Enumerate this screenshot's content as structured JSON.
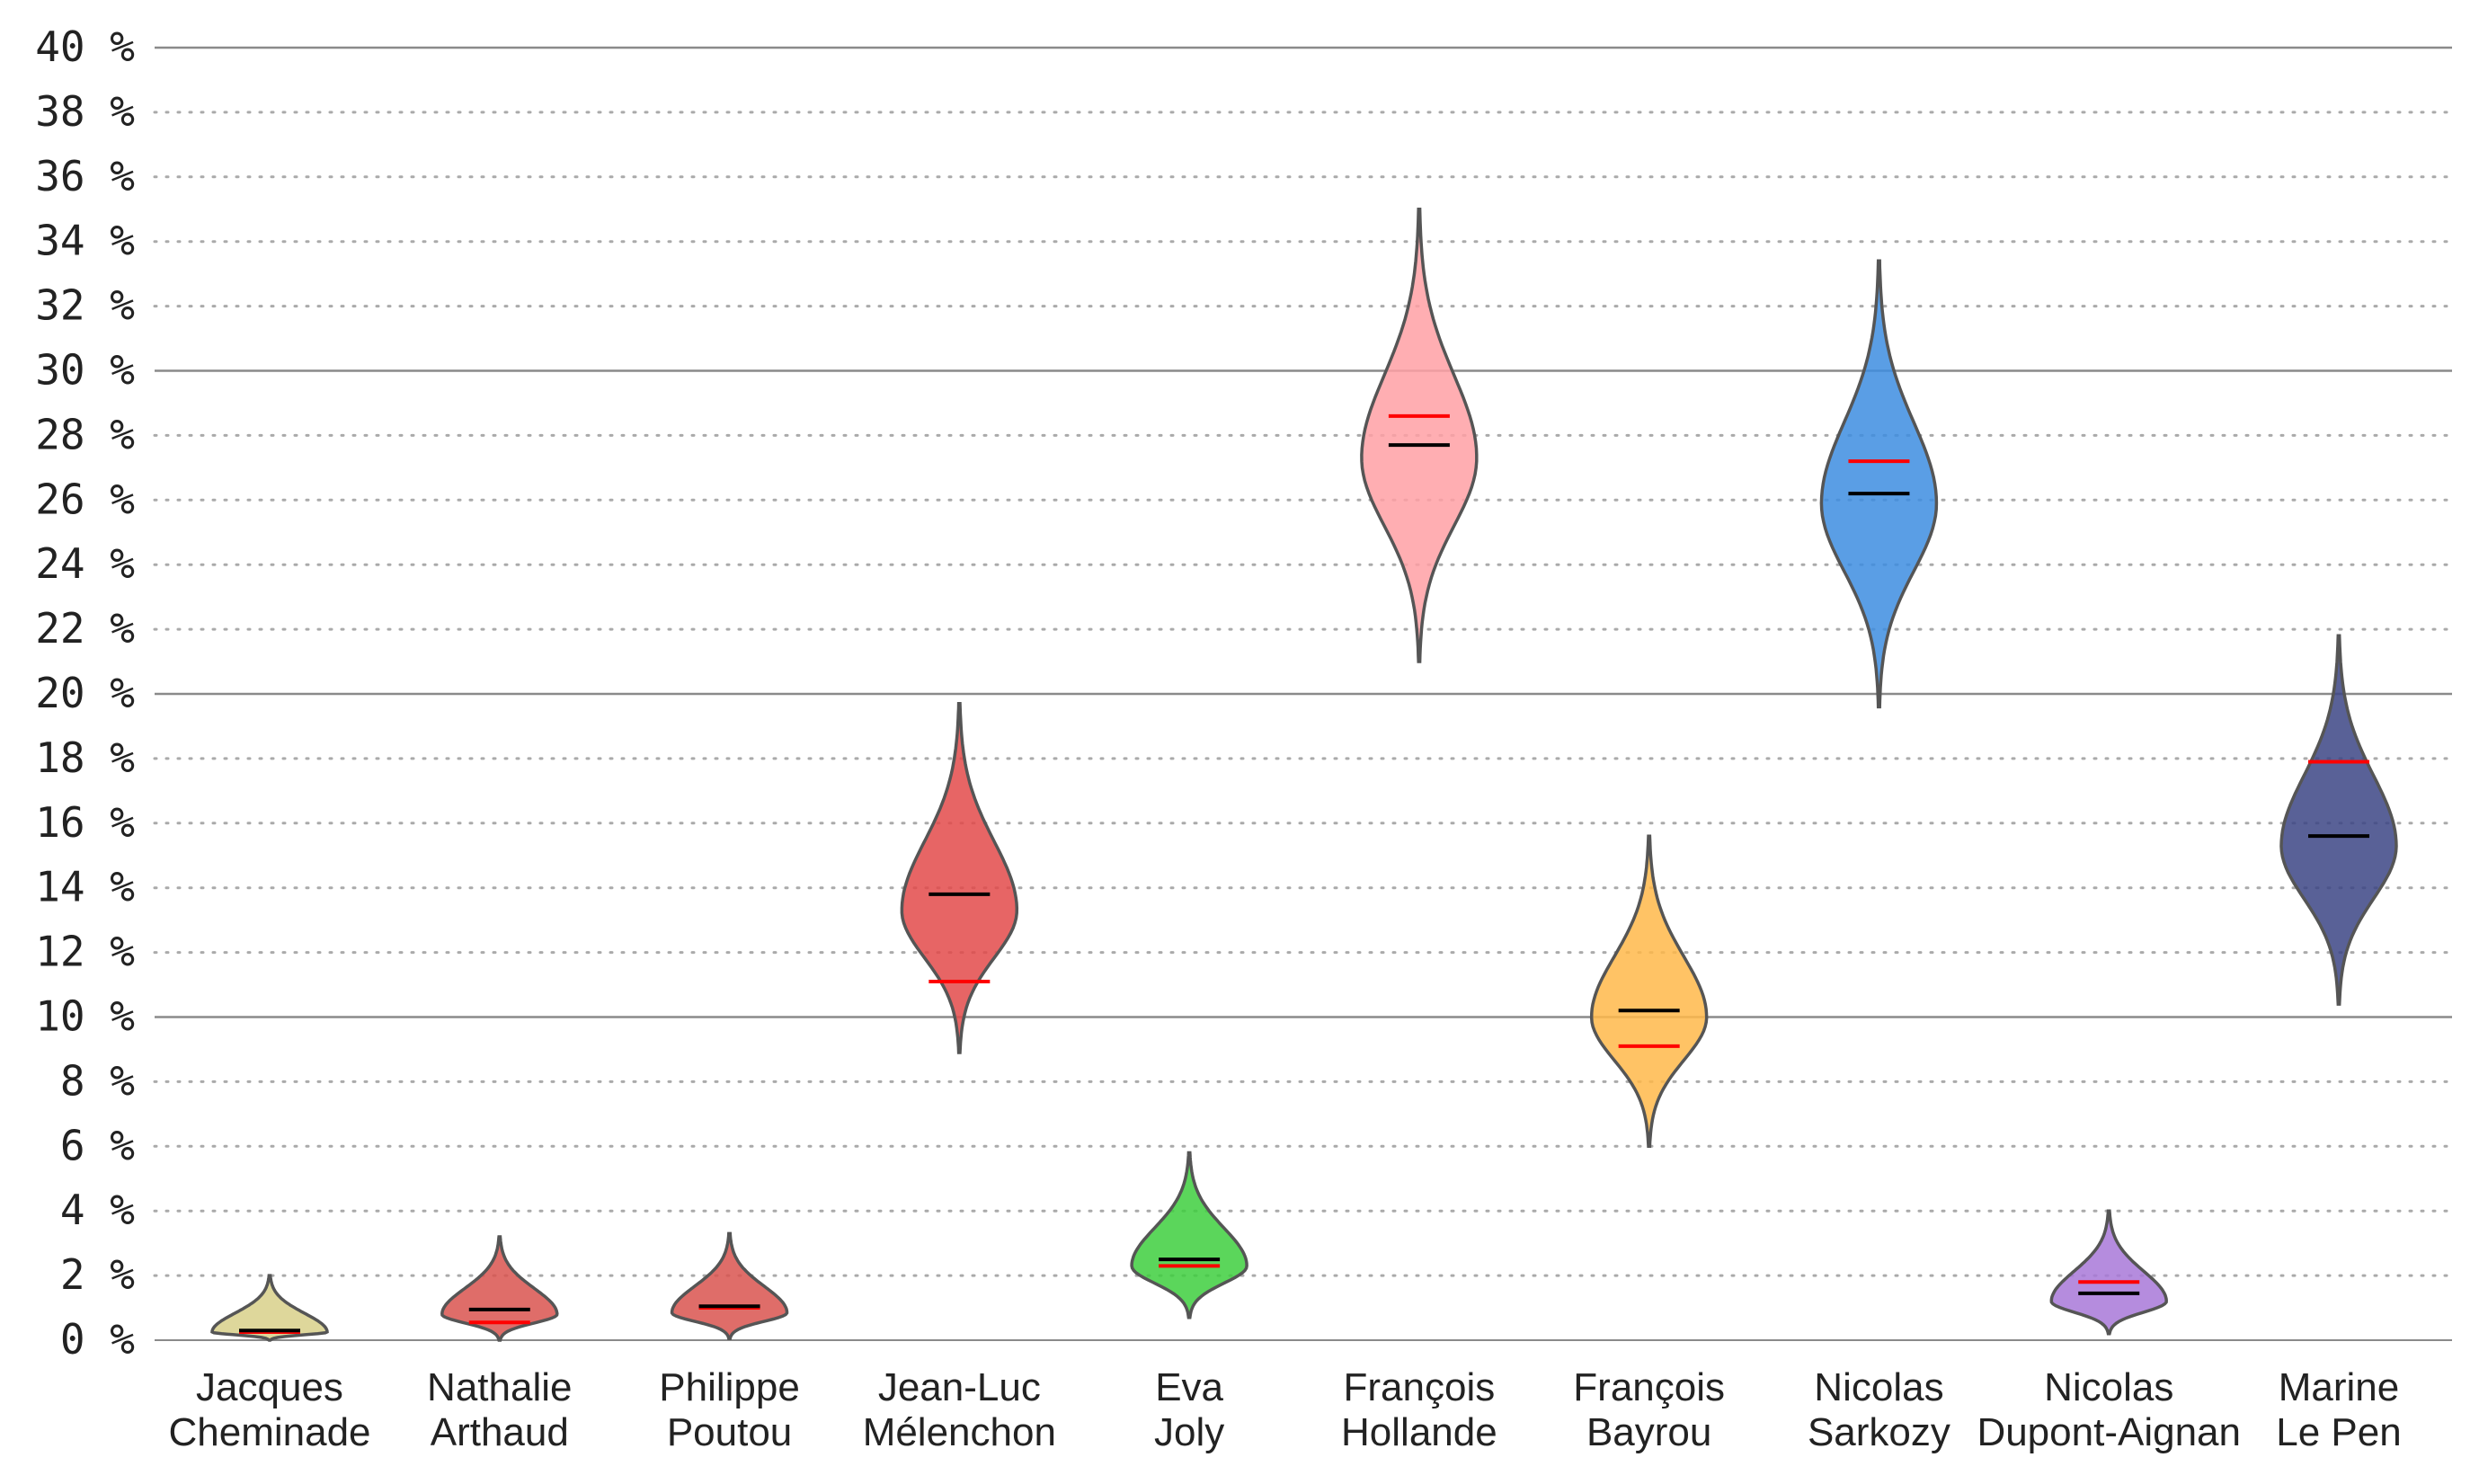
{
  "chart_data": {
    "type": "violin",
    "title": "",
    "xlabel": "",
    "ylabel": "",
    "ylim": [
      0,
      40
    ],
    "yticks": [
      {
        "value": 0,
        "label": "0 %"
      },
      {
        "value": 2,
        "label": "2 %"
      },
      {
        "value": 4,
        "label": "4 %"
      },
      {
        "value": 6,
        "label": "6 %"
      },
      {
        "value": 8,
        "label": "8 %"
      },
      {
        "value": 10,
        "label": "10 %"
      },
      {
        "value": 12,
        "label": "12 %"
      },
      {
        "value": 14,
        "label": "14 %"
      },
      {
        "value": 16,
        "label": "16 %"
      },
      {
        "value": 18,
        "label": "18 %"
      },
      {
        "value": 20,
        "label": "20 %"
      },
      {
        "value": 22,
        "label": "22 %"
      },
      {
        "value": 24,
        "label": "24 %"
      },
      {
        "value": 26,
        "label": "26 %"
      },
      {
        "value": 28,
        "label": "28 %"
      },
      {
        "value": 30,
        "label": "30 %"
      },
      {
        "value": 32,
        "label": "32 %"
      },
      {
        "value": 34,
        "label": "34 %"
      },
      {
        "value": 36,
        "label": "36 %"
      },
      {
        "value": 38,
        "label": "38 %"
      },
      {
        "value": 40,
        "label": "40 %"
      }
    ],
    "major_gridlines": [
      10,
      20,
      30,
      40
    ],
    "minor_gridlines_dotted": true,
    "series": [
      {
        "name": "Jacques Cheminade",
        "label_lines": [
          "Jacques",
          "Cheminade"
        ],
        "color": "#d8d08a",
        "min": 0.0,
        "max": 2.0,
        "center": 0.25,
        "mean": 0.3,
        "result": 0.25
      },
      {
        "name": "Nathalie Arthaud",
        "label_lines": [
          "Nathalie",
          "Arthaud"
        ],
        "color": "#d9534f",
        "min": 0.0,
        "max": 3.2,
        "center": 0.8,
        "mean": 0.95,
        "result": 0.55
      },
      {
        "name": "Philippe Poutou",
        "label_lines": [
          "Philippe",
          "Poutou"
        ],
        "color": "#d9534f",
        "min": 0.05,
        "max": 3.3,
        "center": 0.85,
        "mean": 1.05,
        "result": 1.0
      },
      {
        "name": "Jean-Luc Mélenchon",
        "label_lines": [
          "Jean-Luc",
          "Mélenchon"
        ],
        "color": "#e34a4a",
        "min": 8.9,
        "max": 19.7,
        "center": 13.3,
        "mean": 13.8,
        "result": 11.1
      },
      {
        "name": "Eva Joly",
        "label_lines": [
          "Eva",
          "Joly"
        ],
        "color": "#3ecf3e",
        "min": 0.7,
        "max": 5.8,
        "center": 2.3,
        "mean": 2.5,
        "result": 2.3
      },
      {
        "name": "François Hollande",
        "label_lines": [
          "François",
          "Hollande"
        ],
        "color": "#ffa0a4",
        "min": 21.0,
        "max": 35.0,
        "center": 27.3,
        "mean": 27.7,
        "result": 28.6
      },
      {
        "name": "François Bayrou",
        "label_lines": [
          "François",
          "Bayrou"
        ],
        "color": "#ffb84a",
        "min": 6.0,
        "max": 15.6,
        "center": 10.0,
        "mean": 10.2,
        "result": 9.1
      },
      {
        "name": "Nicolas Sarkozy",
        "label_lines": [
          "Nicolas",
          "Sarkozy"
        ],
        "color": "#3d8de0",
        "min": 19.6,
        "max": 33.4,
        "center": 25.9,
        "mean": 26.2,
        "result": 27.2
      },
      {
        "name": "Nicolas Dupont-Aignan",
        "label_lines": [
          "Nicolas",
          "Dupont-Aignan"
        ],
        "color": "#a878d8",
        "min": 0.2,
        "max": 4.0,
        "center": 1.2,
        "mean": 1.45,
        "result": 1.8
      },
      {
        "name": "Marine Le Pen",
        "label_lines": [
          "Marine",
          "Le Pen"
        ],
        "color": "#3c4585",
        "min": 10.4,
        "max": 21.8,
        "center": 15.3,
        "mean": 15.6,
        "result": 17.9
      }
    ],
    "mean_line_color": "#000000",
    "result_line_color": "#ff0000",
    "outline_color": "#555555"
  }
}
